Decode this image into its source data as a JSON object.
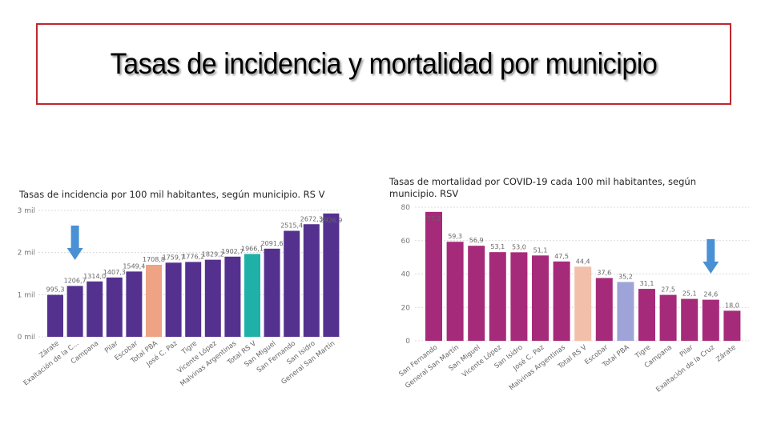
{
  "slide": {
    "title": "Tasas de incidencia y mortalidad por municipio",
    "border_color": "#c0272d"
  },
  "chart_data": [
    {
      "type": "bar",
      "title": "Tasas de incidencia por 100 mil habitantes, según municipio. RS V",
      "xlabel": "",
      "ylabel": "",
      "ylim": [
        0,
        3000
      ],
      "yticks": [
        0,
        1000,
        2000,
        3000
      ],
      "ytick_labels": [
        "0 mil",
        "1 mil",
        "2 mil",
        "3 mil"
      ],
      "grid": true,
      "categories": [
        "Zárate",
        "Exaltación de la C...",
        "Campana",
        "Pilar",
        "Escobar",
        "Total PBA",
        "José C. Paz",
        "Tigre",
        "Vicente López",
        "Malvinas Argentinas",
        "Total RS V",
        "San Miguel",
        "San Fernando",
        "San Isidro",
        "General San Martín"
      ],
      "values": [
        995.3,
        1206.7,
        1314.0,
        1407.3,
        1549.4,
        1708.8,
        1759.7,
        1776.2,
        1829.2,
        1902.7,
        1966.1,
        2091.6,
        2515.4,
        2672.3,
        2926.9
      ],
      "labels": [
        "995,3",
        "1206,7",
        "1314,0",
        "1407,3",
        "1549,4",
        "1708,8",
        "1759,7",
        "1776,2",
        "1829,2",
        "1902,7",
        "1966,1",
        "2091,6",
        "2515,4",
        "2672,3",
        "2926,9"
      ],
      "colors": [
        "#54318f",
        "#54318f",
        "#54318f",
        "#54318f",
        "#54318f",
        "#eea384",
        "#54318f",
        "#54318f",
        "#54318f",
        "#54318f",
        "#1fb0a8",
        "#54318f",
        "#54318f",
        "#54318f",
        "#54318f"
      ],
      "annotation": {
        "type": "arrow-down",
        "target": "Exaltación de la C...",
        "color": "#4a90d4"
      }
    },
    {
      "type": "bar",
      "title": "Tasas de mortalidad por COVID-19 cada 100 mil habitantes, según municipio. RSV",
      "xlabel": "",
      "ylabel": "",
      "ylim": [
        0,
        80
      ],
      "yticks": [
        0,
        20,
        40,
        60,
        80
      ],
      "ytick_labels": [
        "0",
        "20",
        "40",
        "60",
        "80"
      ],
      "grid": true,
      "categories": [
        "San Fernando",
        "General San Martín",
        "San Miguel",
        "Vicente López",
        "San Isidro",
        "José C. Paz",
        "Malvinas Argentinas",
        "Total RS V",
        "Escobar",
        "Total PBA",
        "Tigre",
        "Campana",
        "Pilar",
        "Exaltación de la Cruz",
        "Zárate"
      ],
      "values": [
        77.2,
        59.3,
        56.9,
        53.1,
        53.0,
        51.1,
        47.5,
        44.4,
        37.6,
        35.2,
        31.1,
        27.5,
        25.1,
        24.6,
        18.0
      ],
      "labels": [
        "77,2",
        "59,3",
        "56,9",
        "53,1",
        "53,0",
        "51,1",
        "47,5",
        "44,4",
        "37,6",
        "35,2",
        "31,1",
        "27,5",
        "25,1",
        "24,6",
        "18,0"
      ],
      "colors": [
        "#a62a7a",
        "#a62a7a",
        "#a62a7a",
        "#a62a7a",
        "#a62a7a",
        "#a62a7a",
        "#a62a7a",
        "#f2c0aa",
        "#a62a7a",
        "#9ea3d8",
        "#a62a7a",
        "#a62a7a",
        "#a62a7a",
        "#a62a7a",
        "#a62a7a"
      ],
      "annotation": {
        "type": "arrow-down",
        "target": "Exaltación de la Cruz",
        "color": "#4a90d4"
      }
    }
  ]
}
